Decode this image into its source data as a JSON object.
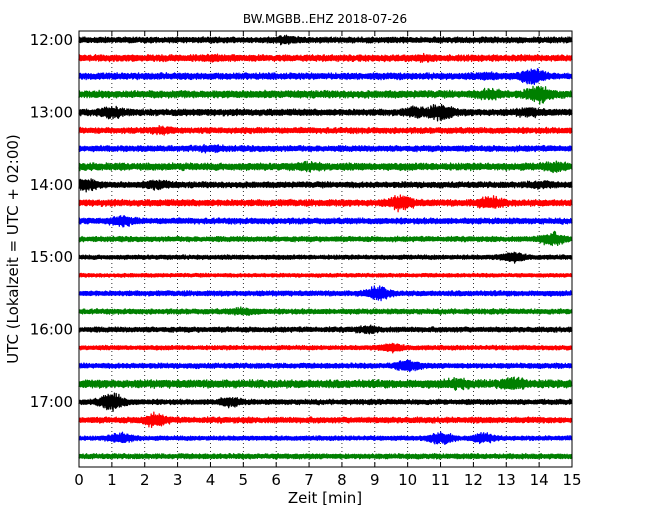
{
  "chart_data": {
    "type": "line",
    "title": "BW.MGBB..EHZ 2018-07-26",
    "xlabel": "Zeit  [min]",
    "ylabel": "UTC (Lokalzeit = UTC + 02:00)",
    "xlim": [
      0,
      15
    ],
    "xticks": [
      0,
      1,
      2,
      3,
      4,
      5,
      6,
      7,
      8,
      9,
      10,
      11,
      12,
      13,
      14,
      15
    ],
    "xtick_labels": [
      "0",
      "1",
      "2",
      "3",
      "4",
      "5",
      "6",
      "7",
      "8",
      "9",
      "10",
      "11",
      "12",
      "13",
      "14",
      "15"
    ],
    "ytick_labels": [
      "12:00",
      "13:00",
      "14:00",
      "15:00",
      "16:00",
      "17:00"
    ],
    "grid": "vertical dotted",
    "trace_colors": [
      "#000000",
      "#ff0000",
      "#0000ff",
      "#008000"
    ],
    "series": [
      {
        "start": "12:00",
        "color": "#000000",
        "amplitude": 0.8,
        "events": [
          [
            6.3,
            1.3
          ]
        ]
      },
      {
        "start": "12:15",
        "color": "#ff0000",
        "amplitude": 0.9,
        "events": [
          [
            4.2,
            1.2
          ],
          [
            10.5,
            1.2
          ]
        ]
      },
      {
        "start": "12:30",
        "color": "#0000ff",
        "amplitude": 0.9,
        "events": [
          [
            13.8,
            2.4
          ],
          [
            12.5,
            1.3
          ]
        ]
      },
      {
        "start": "12:45",
        "color": "#008000",
        "amplitude": 1.0,
        "events": [
          [
            12.5,
            1.8
          ],
          [
            14.0,
            2.6
          ]
        ]
      },
      {
        "start": "13:00",
        "color": "#000000",
        "amplitude": 0.9,
        "events": [
          [
            1.0,
            1.8
          ],
          [
            11.0,
            2.6
          ],
          [
            10.3,
            1.8
          ],
          [
            13.7,
            1.5
          ]
        ]
      },
      {
        "start": "13:15",
        "color": "#ff0000",
        "amplitude": 0.8,
        "events": [
          [
            2.5,
            1.3
          ]
        ]
      },
      {
        "start": "13:30",
        "color": "#0000ff",
        "amplitude": 0.8,
        "events": [
          [
            4.0,
            1.2
          ]
        ]
      },
      {
        "start": "13:45",
        "color": "#008000",
        "amplitude": 1.0,
        "events": [
          [
            7.0,
            1.5
          ],
          [
            14.5,
            1.6
          ]
        ]
      },
      {
        "start": "14:00",
        "color": "#000000",
        "amplitude": 0.8,
        "events": [
          [
            0.2,
            2.0
          ],
          [
            2.4,
            1.5
          ],
          [
            14.0,
            1.3
          ]
        ]
      },
      {
        "start": "14:15",
        "color": "#ff0000",
        "amplitude": 0.9,
        "events": [
          [
            9.8,
            2.3
          ],
          [
            12.5,
            2.0
          ]
        ]
      },
      {
        "start": "14:30",
        "color": "#0000ff",
        "amplitude": 0.8,
        "events": [
          [
            1.3,
            1.6
          ]
        ]
      },
      {
        "start": "14:45",
        "color": "#008000",
        "amplitude": 0.7,
        "events": [
          [
            14.4,
            2.0
          ]
        ]
      },
      {
        "start": "15:00",
        "color": "#000000",
        "amplitude": 0.6,
        "events": [
          [
            13.2,
            1.5
          ]
        ]
      },
      {
        "start": "15:15",
        "color": "#ff0000",
        "amplitude": 0.5,
        "events": []
      },
      {
        "start": "15:30",
        "color": "#0000ff",
        "amplitude": 0.7,
        "events": [
          [
            9.1,
            2.1
          ]
        ]
      },
      {
        "start": "15:45",
        "color": "#008000",
        "amplitude": 0.7,
        "events": [
          [
            5.0,
            1.2
          ]
        ]
      },
      {
        "start": "16:00",
        "color": "#000000",
        "amplitude": 0.7,
        "events": [
          [
            8.8,
            1.2
          ]
        ]
      },
      {
        "start": "16:15",
        "color": "#ff0000",
        "amplitude": 0.6,
        "events": [
          [
            9.5,
            1.3
          ]
        ]
      },
      {
        "start": "16:30",
        "color": "#0000ff",
        "amplitude": 0.7,
        "events": [
          [
            10.0,
            1.8
          ]
        ]
      },
      {
        "start": "16:45",
        "color": "#008000",
        "amplitude": 1.1,
        "events": [
          [
            11.5,
            1.8
          ],
          [
            13.2,
            2.0
          ]
        ]
      },
      {
        "start": "17:00",
        "color": "#000000",
        "amplitude": 0.7,
        "events": [
          [
            1.0,
            2.6
          ],
          [
            4.6,
            1.5
          ]
        ]
      },
      {
        "start": "17:15",
        "color": "#ff0000",
        "amplitude": 0.8,
        "events": [
          [
            2.3,
            2.0
          ]
        ]
      },
      {
        "start": "17:30",
        "color": "#0000ff",
        "amplitude": 0.6,
        "events": [
          [
            1.3,
            1.7
          ],
          [
            11.0,
            1.8
          ],
          [
            12.3,
            1.6
          ]
        ]
      },
      {
        "start": "17:45",
        "color": "#008000",
        "amplitude": 0.7,
        "events": []
      }
    ]
  }
}
